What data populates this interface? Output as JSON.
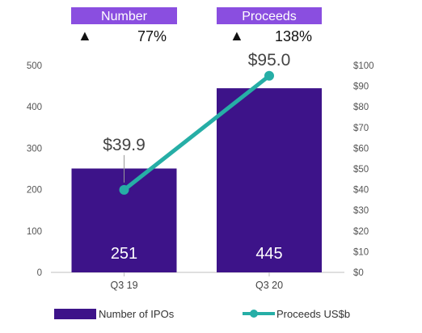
{
  "chart_data": {
    "type": "bar",
    "categories": [
      "Q3 19",
      "Q3 20"
    ],
    "series": [
      {
        "name": "Number of IPOs",
        "type": "bar",
        "axis": "left",
        "values": [
          251,
          445
        ],
        "labels": [
          "251",
          "445"
        ]
      },
      {
        "name": "Proceeds US$b",
        "type": "line",
        "axis": "right",
        "values": [
          39.9,
          95.0
        ],
        "labels": [
          "$39.9",
          "$95.0"
        ]
      }
    ],
    "left_axis": {
      "ylim": [
        0,
        500
      ],
      "ticks": [
        "0",
        "100",
        "200",
        "300",
        "400",
        "500"
      ]
    },
    "right_axis": {
      "ylim": [
        0,
        100
      ],
      "ticks": [
        "$0",
        "$10",
        "$20",
        "$30",
        "$40",
        "$50",
        "$60",
        "$70",
        "$80",
        "$90",
        "$100"
      ]
    },
    "grid": false,
    "legend_position": "bottom"
  },
  "header": {
    "number_badge": "Number",
    "proceeds_badge": "Proceeds",
    "number_arrow": "▲",
    "proceeds_arrow": "▲",
    "number_change": "77%",
    "proceeds_change": "138%"
  },
  "legend": {
    "bar_label": "Number of IPOs",
    "line_label": "Proceeds US$b"
  },
  "colors": {
    "bar": "#3d1389",
    "line": "#26aea6",
    "badge": "#8a4ee0"
  }
}
